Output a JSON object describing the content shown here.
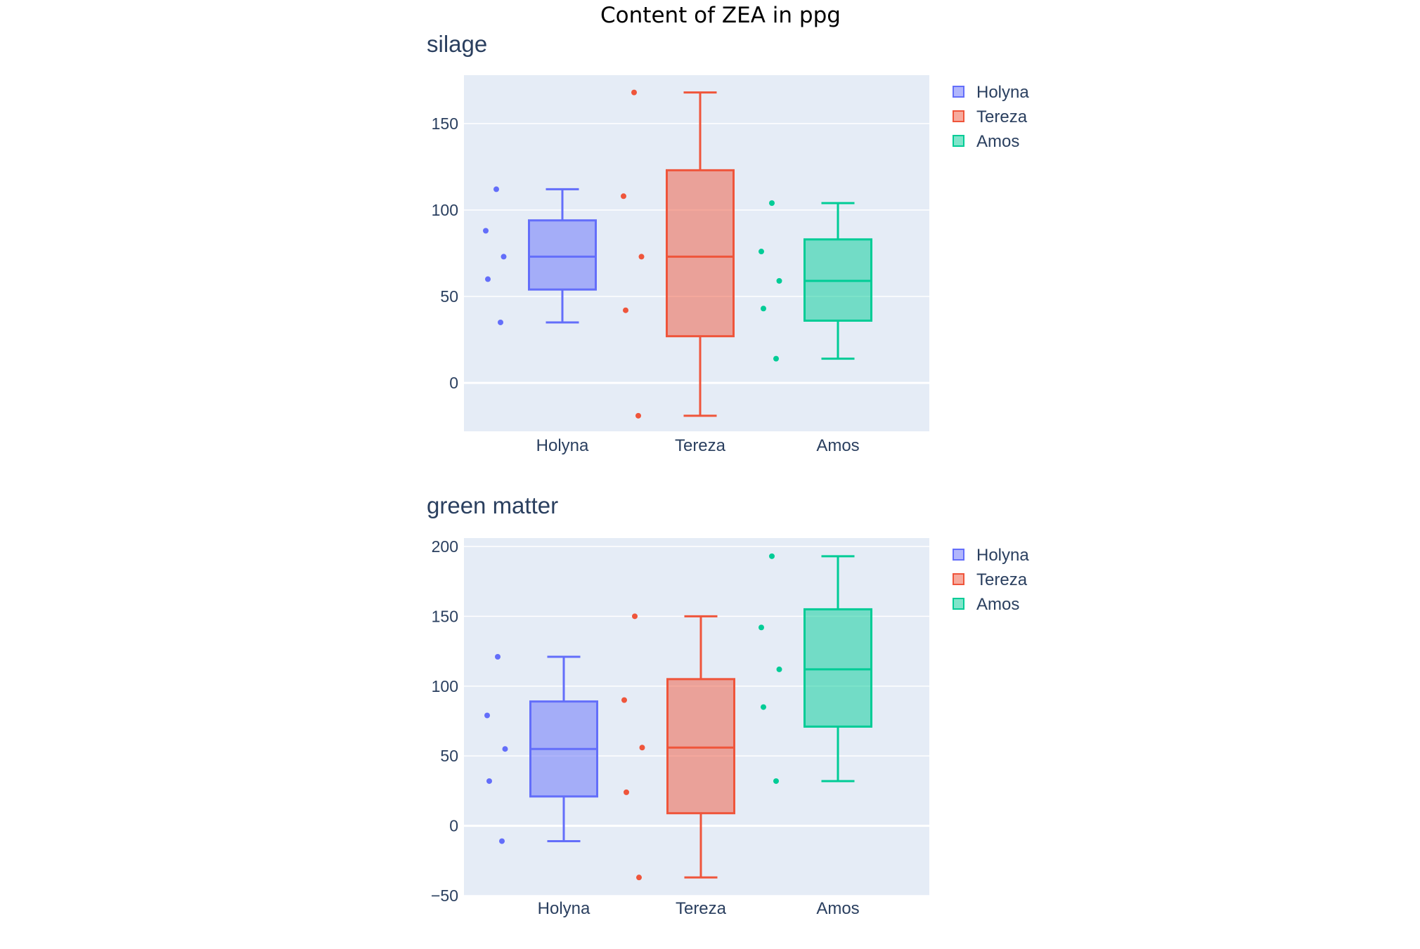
{
  "figure": {
    "title": "Content of ZEA in ppg"
  },
  "chart_data": [
    {
      "type": "box",
      "title": "silage",
      "categories": [
        "Holyna",
        "Tereza",
        "Amos"
      ],
      "ylim": [
        -28,
        178
      ],
      "yticks": [
        0,
        50,
        100,
        150
      ],
      "legend_position": "top-right",
      "series": [
        {
          "name": "Holyna",
          "color": "#636efa",
          "fill": "rgba(99,110,250,0.5)",
          "points": [
            112,
            88,
            73,
            60,
            35
          ],
          "stats": {
            "min": 35,
            "q1": 54,
            "median": 73,
            "q3": 94,
            "max": 112
          }
        },
        {
          "name": "Tereza",
          "color": "#ef553b",
          "fill": "rgba(239,85,59,0.5)",
          "points": [
            168,
            108,
            73,
            42,
            -19
          ],
          "stats": {
            "min": -19,
            "q1": 27,
            "median": 73,
            "q3": 123,
            "max": 168
          }
        },
        {
          "name": "Amos",
          "color": "#00cc96",
          "fill": "rgba(0,204,150,0.5)",
          "points": [
            104,
            76,
            59,
            43,
            14
          ],
          "stats": {
            "min": 14,
            "q1": 36,
            "median": 59,
            "q3": 83,
            "max": 104
          }
        }
      ]
    },
    {
      "type": "box",
      "title": "green matter",
      "categories": [
        "Holyna",
        "Tereza",
        "Amos"
      ],
      "ylim": [
        -50,
        206
      ],
      "yticks": [
        -50,
        0,
        50,
        100,
        150,
        200
      ],
      "ytick_labels": [
        "−50",
        "0",
        "50",
        "100",
        "150",
        "200"
      ],
      "legend_position": "top-right",
      "series": [
        {
          "name": "Holyna",
          "color": "#636efa",
          "fill": "rgba(99,110,250,0.5)",
          "points": [
            121,
            79,
            55,
            32,
            -11
          ],
          "stats": {
            "min": -11,
            "q1": 21,
            "median": 55,
            "q3": 89,
            "max": 121
          }
        },
        {
          "name": "Tereza",
          "color": "#ef553b",
          "fill": "rgba(239,85,59,0.5)",
          "points": [
            150,
            90,
            56,
            24,
            -37
          ],
          "stats": {
            "min": -37,
            "q1": 9,
            "median": 56,
            "q3": 105,
            "max": 150
          }
        },
        {
          "name": "Amos",
          "color": "#00cc96",
          "fill": "rgba(0,204,150,0.5)",
          "points": [
            193,
            142,
            112,
            85,
            32
          ],
          "stats": {
            "min": 32,
            "q1": 71,
            "median": 112,
            "q3": 155,
            "max": 193
          }
        }
      ]
    }
  ]
}
